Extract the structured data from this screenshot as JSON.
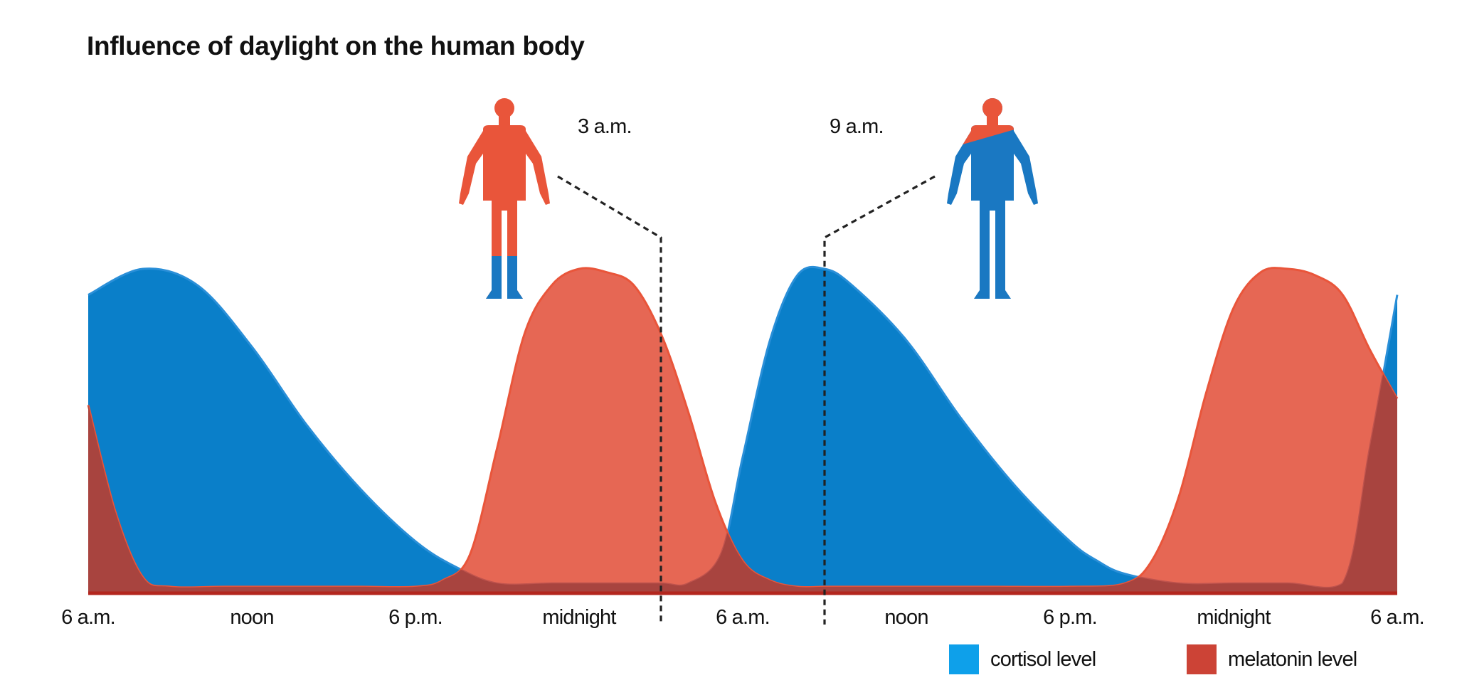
{
  "chart_data": {
    "type": "area",
    "title": "Influence of daylight on the human body",
    "x_unit": "hours since first 6 a.m.",
    "xlim": [
      0,
      48
    ],
    "ylim": [
      0,
      1
    ],
    "grid": false,
    "legend_position": "bottom-right",
    "x_tick_labels": [
      {
        "x": 0,
        "label": "6 a.m."
      },
      {
        "x": 6,
        "label": "noon"
      },
      {
        "x": 12,
        "label": "6 p.m."
      },
      {
        "x": 18,
        "label": "midnight"
      },
      {
        "x": 24,
        "label": "6 a.m."
      },
      {
        "x": 30,
        "label": "noon"
      },
      {
        "x": 36,
        "label": "6 p.m."
      },
      {
        "x": 42,
        "label": "midnight"
      },
      {
        "x": 48,
        "label": "6 a.m."
      }
    ],
    "series": [
      {
        "name": "cortisol level",
        "color": "#0a7fc9",
        "x": [
          0,
          2,
          4,
          6,
          8,
          10,
          12,
          13.5,
          15,
          17,
          19,
          21,
          22,
          23.2,
          24,
          25,
          26,
          27,
          28,
          30,
          32,
          34,
          36,
          37,
          38,
          40,
          42,
          44,
          46,
          47,
          48
        ],
        "values": [
          0.92,
          1.0,
          0.95,
          0.76,
          0.52,
          0.32,
          0.16,
          0.08,
          0.03,
          0.03,
          0.03,
          0.03,
          0.03,
          0.12,
          0.42,
          0.78,
          0.98,
          1.0,
          0.95,
          0.78,
          0.54,
          0.33,
          0.16,
          0.1,
          0.06,
          0.03,
          0.03,
          0.03,
          0.03,
          0.45,
          0.92
        ]
      },
      {
        "name": "melatonin level",
        "color": "#e9553a",
        "x": [
          0,
          1,
          2,
          3,
          5,
          8,
          10,
          12,
          13,
          14,
          15,
          16,
          17,
          18,
          19,
          20,
          21,
          22,
          23,
          24,
          25,
          26,
          27,
          28,
          30,
          33,
          36,
          38,
          39,
          40,
          41,
          42,
          43,
          44,
          45,
          46,
          47,
          48
        ],
        "values": [
          0.58,
          0.25,
          0.05,
          0.02,
          0.02,
          0.02,
          0.02,
          0.02,
          0.04,
          0.12,
          0.45,
          0.8,
          0.95,
          1.0,
          0.99,
          0.95,
          0.8,
          0.56,
          0.28,
          0.1,
          0.04,
          0.02,
          0.02,
          0.02,
          0.02,
          0.02,
          0.02,
          0.03,
          0.1,
          0.3,
          0.62,
          0.88,
          0.99,
          1.0,
          0.98,
          0.92,
          0.75,
          0.6
        ]
      }
    ],
    "annotations": [
      {
        "x": 21,
        "label": "3 a.m."
      },
      {
        "x": 27,
        "label": "9 a.m."
      }
    ]
  }
}
